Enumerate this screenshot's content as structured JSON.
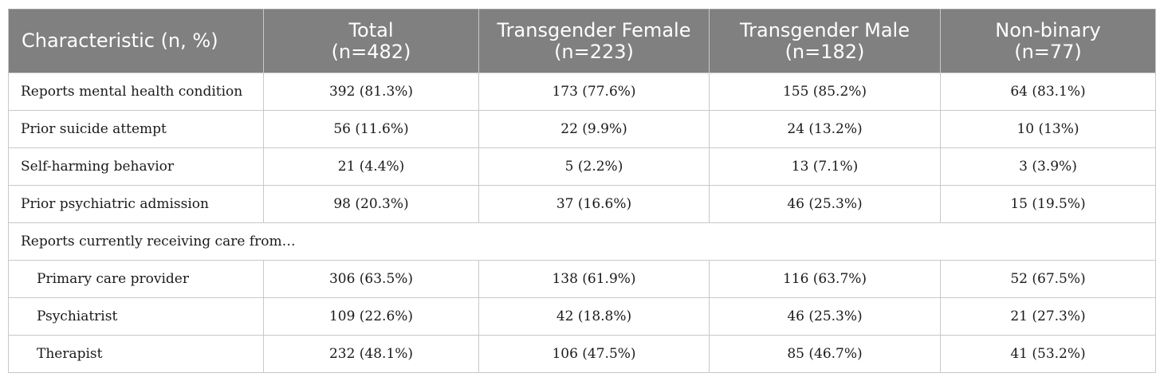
{
  "table": {
    "header": {
      "characteristic": "Characteristic (n, %)",
      "columns": [
        {
          "name": "Total",
          "n": "(n=482)"
        },
        {
          "name": "Transgender Female",
          "n": "(n=223)"
        },
        {
          "name": "Transgender Male",
          "n": "(n=182)"
        },
        {
          "name": "Non-binary",
          "n": "(n=77)"
        }
      ]
    },
    "rows": [
      {
        "label": "Reports mental health condition",
        "values": [
          "392 (81.3%)",
          "173 (77.6%)",
          "155 (85.2%)",
          "64 (83.1%)"
        ]
      },
      {
        "label": "Prior suicide attempt",
        "values": [
          "56 (11.6%)",
          "22 (9.9%)",
          "24 (13.2%)",
          "10 (13%)"
        ]
      },
      {
        "label": "Self-harming behavior",
        "values": [
          "21 (4.4%)",
          "5 (2.2%)",
          "13 (7.1%)",
          "3 (3.9%)"
        ]
      },
      {
        "label": "Prior psychiatric admission",
        "values": [
          "98 (20.3%)",
          "37 (16.6%)",
          "46 (25.3%)",
          "15 (19.5%)"
        ]
      }
    ],
    "section": {
      "label": "Reports currently receiving care from…",
      "rows": [
        {
          "label": "Primary care provider",
          "values": [
            "306 (63.5%)",
            "138 (61.9%)",
            "116 (63.7%)",
            "52 (67.5%)"
          ]
        },
        {
          "label": "Psychiatrist",
          "values": [
            "109 (22.6%)",
            "42 (18.8%)",
            "46 (25.3%)",
            "21 (27.3%)"
          ]
        },
        {
          "label": "Therapist",
          "values": [
            "232 (48.1%)",
            "106 (47.5%)",
            "85 (46.7%)",
            "41 (53.2%)"
          ]
        }
      ]
    },
    "colors": {
      "header_background": "#808080",
      "header_text": "#ffffff",
      "grid_lines": "#c8c8c8"
    }
  }
}
